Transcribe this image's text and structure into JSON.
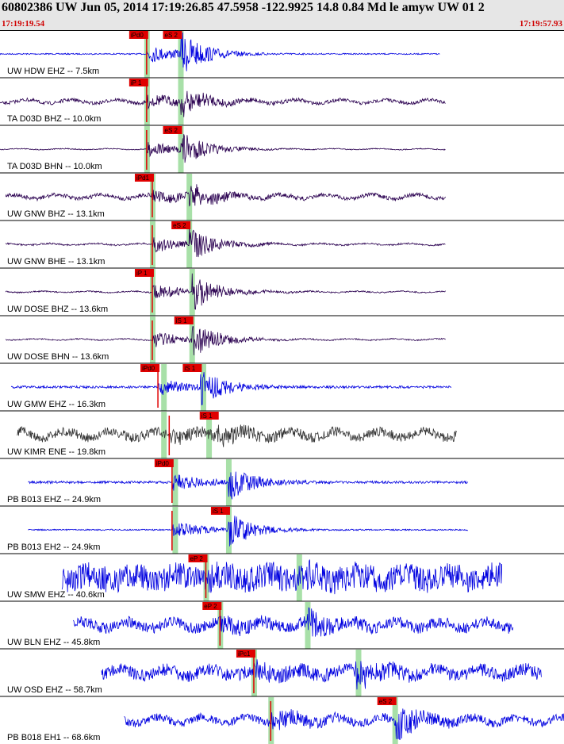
{
  "header": {
    "title": "60802386 UW Jun 05, 2014 17:19:26.85    47.5958 -122.9925 14.8 0.84 Md le amyw UW 01    2",
    "time_start": "17:19:19.54",
    "time_end": "17:19:57.93"
  },
  "colors": {
    "header_bg": "#e6e6e6",
    "pick": "#e00000",
    "window": "#a8e0a8",
    "blue": "#0000e0",
    "purple": "#2a0050",
    "gray": "#333333"
  },
  "chart_data": {
    "type": "line",
    "title": "60802386 UW Jun 05, 2014 17:19:26.85    47.5958 -122.9925 14.8 0.84 Md le amyw UW 01    2",
    "x_axis": {
      "start": "17:19:19.54",
      "end": "17:19:57.93",
      "unit": "time"
    },
    "traces": [
      {
        "label": "UW HDW EHZ -- 7.5km",
        "color": "blue",
        "start": 0.0,
        "end": 0.78,
        "p": 0.26,
        "s": 0.32,
        "noise": 0.8,
        "amp": 26,
        "picks": [
          {
            "label": "iPd0",
            "at": 0.26
          },
          {
            "label": "eS 2",
            "at": 0.32
          }
        ],
        "windows": [
          0.26,
          0.32
        ]
      },
      {
        "label": "TA D03D BHZ -- 10.0km",
        "color": "purple",
        "start": 0.0,
        "end": 0.79,
        "p": 0.26,
        "s": 0.32,
        "noise": 2.2,
        "amp": 16,
        "picks": [
          {
            "label": "iP 1",
            "at": 0.26
          }
        ],
        "windows": [
          0.26,
          0.32
        ]
      },
      {
        "label": "TA D03D BHN -- 10.0km",
        "color": "purple",
        "start": 0.0,
        "end": 0.79,
        "p": 0.26,
        "s": 0.32,
        "noise": 0.6,
        "amp": 22,
        "picks": [
          {
            "label": "eS 2",
            "at": 0.32
          }
        ],
        "windows": [
          0.26,
          0.32
        ]
      },
      {
        "label": "UW GNW BHZ -- 13.1km",
        "color": "purple",
        "start": 0.01,
        "end": 0.79,
        "p": 0.27,
        "s": 0.335,
        "noise": 2.5,
        "amp": 14,
        "picks": [
          {
            "label": "iPd1",
            "at": 0.27
          }
        ],
        "windows": [
          0.27,
          0.335
        ]
      },
      {
        "label": "UW GNW BHE -- 13.1km",
        "color": "purple",
        "start": 0.01,
        "end": 0.79,
        "p": 0.27,
        "s": 0.335,
        "noise": 1.0,
        "amp": 20,
        "picks": [
          {
            "label": "eS 2",
            "at": 0.335
          }
        ],
        "windows": [
          0.27,
          0.335
        ]
      },
      {
        "label": "UW DOSE BHZ -- 13.6km",
        "color": "purple",
        "start": 0.01,
        "end": 0.79,
        "p": 0.27,
        "s": 0.34,
        "noise": 0.8,
        "amp": 22,
        "picks": [
          {
            "label": "iP 1",
            "at": 0.27
          }
        ],
        "windows": [
          0.27,
          0.34
        ]
      },
      {
        "label": "UW DOSE BHN -- 13.6km",
        "color": "purple",
        "start": 0.01,
        "end": 0.79,
        "p": 0.27,
        "s": 0.34,
        "noise": 0.8,
        "amp": 22,
        "picks": [
          {
            "label": "iS 1",
            "at": 0.34
          }
        ],
        "windows": [
          0.27,
          0.34
        ]
      },
      {
        "label": "UW GMW EHZ -- 16.3km",
        "color": "blue",
        "start": 0.02,
        "end": 0.8,
        "p": 0.28,
        "s": 0.355,
        "noise": 1.5,
        "amp": 22,
        "picks": [
          {
            "label": "iPd0",
            "at": 0.28
          },
          {
            "label": "iS 1",
            "at": 0.355
          }
        ],
        "windows": [
          0.29,
          0.36
        ]
      },
      {
        "label": "UW KIMR ENE -- 19.8km",
        "color": "gray",
        "start": 0.03,
        "end": 0.81,
        "p": 0.3,
        "s": 0.385,
        "noise": 6,
        "amp": 10,
        "picks": [
          {
            "label": "iS 1",
            "at": 0.385
          }
        ],
        "windows": [
          0.29,
          0.37
        ]
      },
      {
        "label": "PB B013 EHZ -- 24.9km",
        "color": "blue",
        "start": 0.05,
        "end": 0.83,
        "p": 0.305,
        "s": 0.405,
        "noise": 1.5,
        "amp": 22,
        "picks": [
          {
            "label": "iPd0",
            "at": 0.305
          }
        ],
        "windows": [
          0.31,
          0.405
        ]
      },
      {
        "label": "PB B013 EH2 -- 24.9km",
        "color": "blue",
        "start": 0.05,
        "end": 0.83,
        "p": 0.305,
        "s": 0.405,
        "noise": 0.8,
        "amp": 24,
        "picks": [
          {
            "label": "iS 1",
            "at": 0.405
          }
        ],
        "windows": [
          0.31,
          0.405
        ]
      },
      {
        "label": "UW SMW EHZ -- 40.6km",
        "color": "blue",
        "start": 0.11,
        "end": 0.89,
        "p": 0.365,
        "s": 0.53,
        "noise": 16,
        "amp": 6,
        "picks": [
          {
            "label": "eP 2",
            "at": 0.365
          }
        ],
        "windows": [
          0.365,
          0.53
        ]
      },
      {
        "label": "UW BLN EHZ -- 45.8km",
        "color": "blue",
        "start": 0.13,
        "end": 0.91,
        "p": 0.39,
        "s": 0.545,
        "noise": 7,
        "amp": 14,
        "picks": [
          {
            "label": "eP 2",
            "at": 0.39
          }
        ],
        "windows": [
          0.39,
          0.545
        ]
      },
      {
        "label": "UW OSD EHZ -- 58.7km",
        "color": "blue",
        "start": 0.18,
        "end": 0.96,
        "p": 0.45,
        "s": 0.63,
        "noise": 8,
        "amp": 14,
        "picks": [
          {
            "label": "iPc1",
            "at": 0.45
          }
        ],
        "windows": [
          0.45,
          0.635
        ]
      },
      {
        "label": "PB B018 EH1 -- 68.6km",
        "color": "blue",
        "start": 0.22,
        "end": 1.0,
        "p": 0.48,
        "s": 0.7,
        "noise": 5,
        "amp": 22,
        "picks": [
          {
            "label": "eS 2",
            "at": 0.7
          }
        ],
        "windows": [
          0.48,
          0.7
        ]
      }
    ]
  }
}
